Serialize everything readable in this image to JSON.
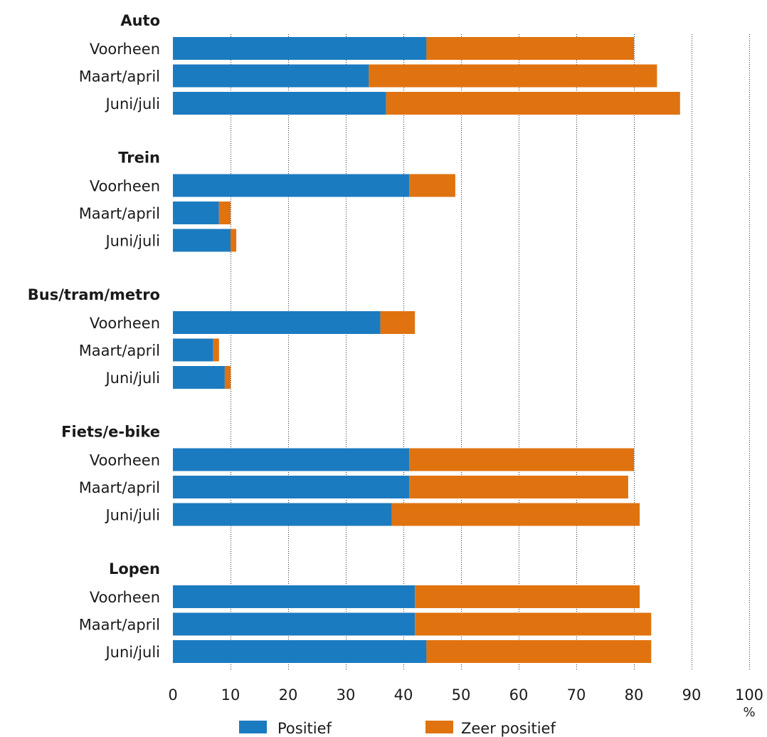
{
  "chart_data": {
    "type": "bar",
    "orientation": "horizontal",
    "stacked": true,
    "xlabel": "%",
    "xlim": [
      0,
      100
    ],
    "xticks": [
      "0",
      "10",
      "20",
      "30",
      "40",
      "50",
      "60",
      "70",
      "80",
      "90",
      "100"
    ],
    "grid": true,
    "legend_position": "bottom",
    "legend": [
      {
        "name": "Positief",
        "color": "#1b7bc1"
      },
      {
        "name": "Zeer positief",
        "color": "#e0730f"
      }
    ],
    "groups": [
      {
        "title": "Auto",
        "rows": [
          {
            "label": "Voorheen",
            "values": [
              44,
              36
            ]
          },
          {
            "label": "Maart/april",
            "values": [
              34,
              50
            ]
          },
          {
            "label": "Juni/juli",
            "values": [
              37,
              51
            ]
          }
        ]
      },
      {
        "title": "Trein",
        "rows": [
          {
            "label": "Voorheen",
            "values": [
              41,
              8
            ]
          },
          {
            "label": "Maart/april",
            "values": [
              8,
              2
            ]
          },
          {
            "label": "Juni/juli",
            "values": [
              10,
              1
            ]
          }
        ]
      },
      {
        "title": "Bus/tram/metro",
        "rows": [
          {
            "label": "Voorheen",
            "values": [
              36,
              6
            ]
          },
          {
            "label": "Maart/april",
            "values": [
              7,
              1
            ]
          },
          {
            "label": "Juni/juli",
            "values": [
              9,
              1
            ]
          }
        ]
      },
      {
        "title": "Fiets/e-bike",
        "rows": [
          {
            "label": "Voorheen",
            "values": [
              41,
              39
            ]
          },
          {
            "label": "Maart/april",
            "values": [
              41,
              38
            ]
          },
          {
            "label": "Juni/juli",
            "values": [
              38,
              43
            ]
          }
        ]
      },
      {
        "title": "Lopen",
        "rows": [
          {
            "label": "Voorheen",
            "values": [
              42,
              39
            ]
          },
          {
            "label": "Maart/april",
            "values": [
              42,
              41
            ]
          },
          {
            "label": "Juni/juli",
            "values": [
              44,
              39
            ]
          }
        ]
      }
    ]
  }
}
